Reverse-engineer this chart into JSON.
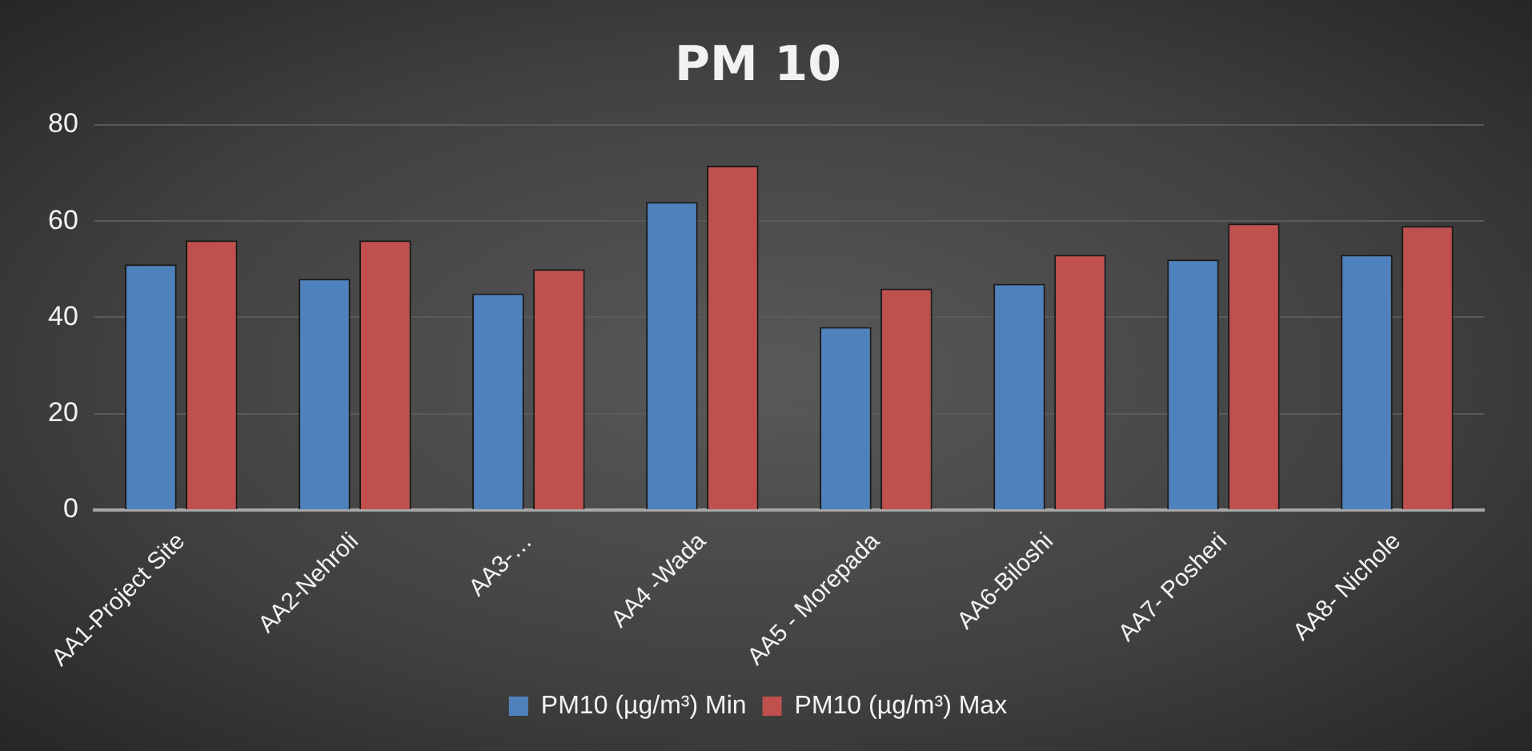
{
  "chart_data": {
    "type": "bar",
    "title": "PM 10",
    "categories": [
      "AA1-Project Site",
      "AA2-Nehroli",
      "AA3-…",
      "AA4 -Wada",
      "AA5 - Morepada",
      "AA6-Biloshi",
      "AA7- Posheri",
      "AA8- Nichole"
    ],
    "series": [
      {
        "name": "PM10 (µg/m³) Min",
        "color": "#4f81bd",
        "values": [
          51,
          48,
          45,
          64,
          38,
          47,
          52,
          53
        ]
      },
      {
        "name": "PM10 (µg/m³) Max",
        "color": "#c0504d",
        "values": [
          56,
          56,
          50,
          71.5,
          46,
          53,
          59.5,
          59
        ]
      }
    ],
    "ylim": [
      0,
      80
    ],
    "yticks": [
      0,
      20,
      40,
      60,
      80
    ],
    "grid": "y",
    "legend": "bottom"
  }
}
